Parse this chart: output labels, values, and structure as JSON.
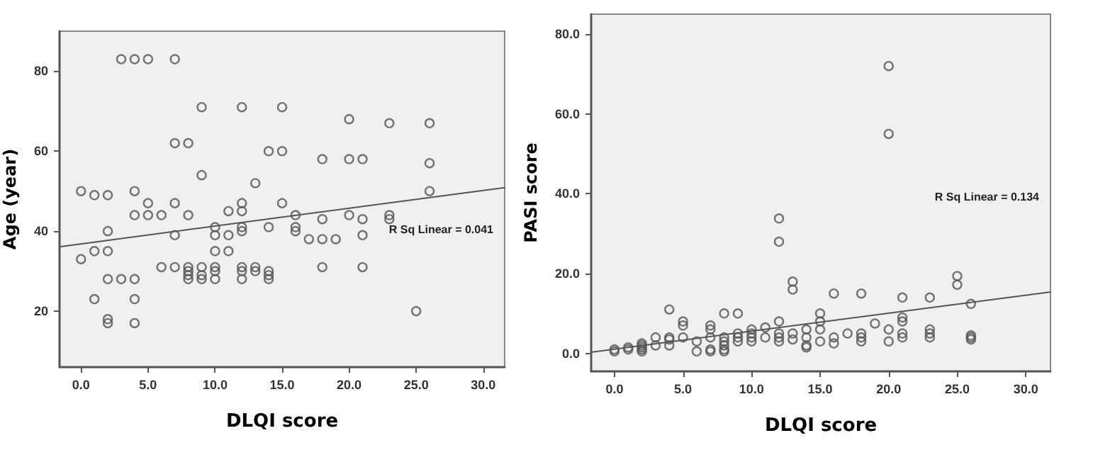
{
  "chart_data": [
    {
      "type": "scatter",
      "xlabel": "DLQI score",
      "ylabel": "Age (year)",
      "marker": "circle",
      "grid": false,
      "xlim": [
        -1.6,
        31.6
      ],
      "ylim": [
        6,
        90
      ],
      "xticks": [
        {
          "value": 0,
          "label": "0.0"
        },
        {
          "value": 5,
          "label": "5.0"
        },
        {
          "value": 10,
          "label": "10.0"
        },
        {
          "value": 15,
          "label": "15.0"
        },
        {
          "value": 20,
          "label": "20.0"
        },
        {
          "value": 25,
          "label": "25.0"
        },
        {
          "value": 30,
          "label": "30.0"
        }
      ],
      "yticks": [
        20,
        40,
        60,
        80
      ],
      "annotations": [
        "R Sq Linear = 0.041"
      ],
      "series": [
        {
          "type": "scatter",
          "color": "#555555",
          "x": [
            3,
            4,
            5,
            7,
            9,
            12,
            15,
            7,
            8,
            14,
            15,
            9,
            13,
            0,
            1,
            2,
            4,
            5,
            7,
            12,
            15,
            4,
            5,
            6,
            8,
            11,
            12,
            10,
            12,
            12,
            14,
            2,
            7,
            10,
            11,
            1,
            2,
            10,
            11,
            0,
            6,
            7,
            8,
            8,
            8,
            8,
            9,
            9,
            9,
            10,
            10,
            10,
            12,
            12,
            12,
            13,
            13,
            14,
            14,
            14,
            2,
            3,
            4,
            1,
            4,
            2,
            2,
            4,
            20,
            23,
            26,
            18,
            20,
            21,
            26,
            26,
            16,
            18,
            20,
            21,
            23,
            23,
            16,
            16,
            17,
            18,
            19,
            21,
            18,
            21,
            25
          ],
          "values": [
            83,
            83,
            83,
            83,
            71,
            71,
            71,
            62,
            62,
            60,
            60,
            54,
            52,
            50,
            49,
            49,
            50,
            47,
            47,
            47,
            47,
            44,
            44,
            44,
            44,
            45,
            45,
            41,
            41,
            40,
            41,
            40,
            39,
            39,
            39,
            35,
            35,
            35,
            35,
            33,
            31,
            31,
            31,
            30,
            29,
            28,
            31,
            29,
            28,
            31,
            30,
            28,
            31,
            30,
            28,
            31,
            30,
            30,
            29,
            28,
            28,
            28,
            28,
            23,
            23,
            18,
            17,
            17,
            68,
            67,
            67,
            58,
            58,
            58,
            57,
            50,
            44,
            43,
            44,
            43,
            44,
            43,
            41,
            40,
            38,
            38,
            38,
            39,
            31,
            31,
            20
          ]
        },
        {
          "type": "line",
          "marker": "none",
          "color": "#555555",
          "x": [
            -1.6,
            31.6
          ],
          "values": [
            36.1,
            50.9
          ]
        }
      ]
    },
    {
      "type": "scatter",
      "xlabel": "DLQI score",
      "ylabel": "PASI score",
      "marker": "circle",
      "grid": false,
      "xlim": [
        -1.7,
        31.8
      ],
      "ylim": [
        -4.5,
        85
      ],
      "xticks": [
        {
          "value": 0,
          "label": "0.0"
        },
        {
          "value": 5,
          "label": "5.0"
        },
        {
          "value": 10,
          "label": "10.0"
        },
        {
          "value": 15,
          "label": "15.0"
        },
        {
          "value": 20,
          "label": "20.0"
        },
        {
          "value": 25,
          "label": "25.0"
        },
        {
          "value": 30,
          "label": "30.0"
        }
      ],
      "yticks": [
        {
          "value": 0,
          "label": "0.0"
        },
        {
          "value": 20,
          "label": "20.0"
        },
        {
          "value": 40,
          "label": "40.0"
        },
        {
          "value": 60,
          "label": "60.0"
        },
        {
          "value": 80,
          "label": "80.0"
        }
      ],
      "annotations": [
        "R Sq Linear = 0.134"
      ],
      "series": [
        {
          "type": "scatter",
          "color": "#555555",
          "x": [
            0,
            0,
            1,
            1,
            2,
            2,
            2,
            2,
            2,
            3,
            3,
            4,
            4,
            4,
            4,
            5,
            5,
            5,
            6,
            6,
            7,
            7,
            7,
            7,
            7,
            8,
            8,
            8,
            8,
            8,
            8,
            9,
            9,
            9,
            9,
            10,
            10,
            10,
            10,
            11,
            11,
            12,
            12,
            12,
            12,
            12,
            12,
            13,
            13,
            13,
            13,
            14,
            14,
            14,
            14,
            15,
            15,
            15,
            15,
            16,
            16,
            16,
            17,
            18,
            18,
            18,
            18,
            19,
            20,
            20,
            20,
            20,
            21,
            21,
            21,
            21,
            21,
            23,
            23,
            23,
            23,
            25,
            25,
            26,
            26,
            26,
            26
          ],
          "values": [
            0.5,
            1,
            1,
            1.5,
            0.5,
            1,
            1.5,
            2,
            2.5,
            2,
            4,
            11,
            4,
            3.5,
            2,
            8,
            7,
            4,
            0.5,
            3,
            7,
            6,
            4,
            1,
            0.5,
            10,
            4,
            3,
            2,
            1,
            0.5,
            10,
            5,
            4,
            3,
            6,
            5,
            4,
            3,
            6.5,
            4,
            33.8,
            28,
            8,
            5,
            4,
            3,
            18,
            16,
            5,
            3.5,
            6,
            4,
            2,
            1.5,
            10,
            8,
            6,
            3,
            15,
            4,
            2.5,
            5,
            15,
            5,
            4,
            3,
            7.5,
            72,
            55,
            6,
            3,
            14,
            9,
            8,
            5,
            4,
            14,
            6,
            5,
            4,
            19.4,
            17.2,
            12.4,
            4.5,
            4,
            3.5
          ]
        },
        {
          "type": "line",
          "marker": "none",
          "color": "#555555",
          "x": [
            -1.7,
            31.8
          ],
          "values": [
            0.3,
            15.4
          ]
        }
      ]
    }
  ]
}
